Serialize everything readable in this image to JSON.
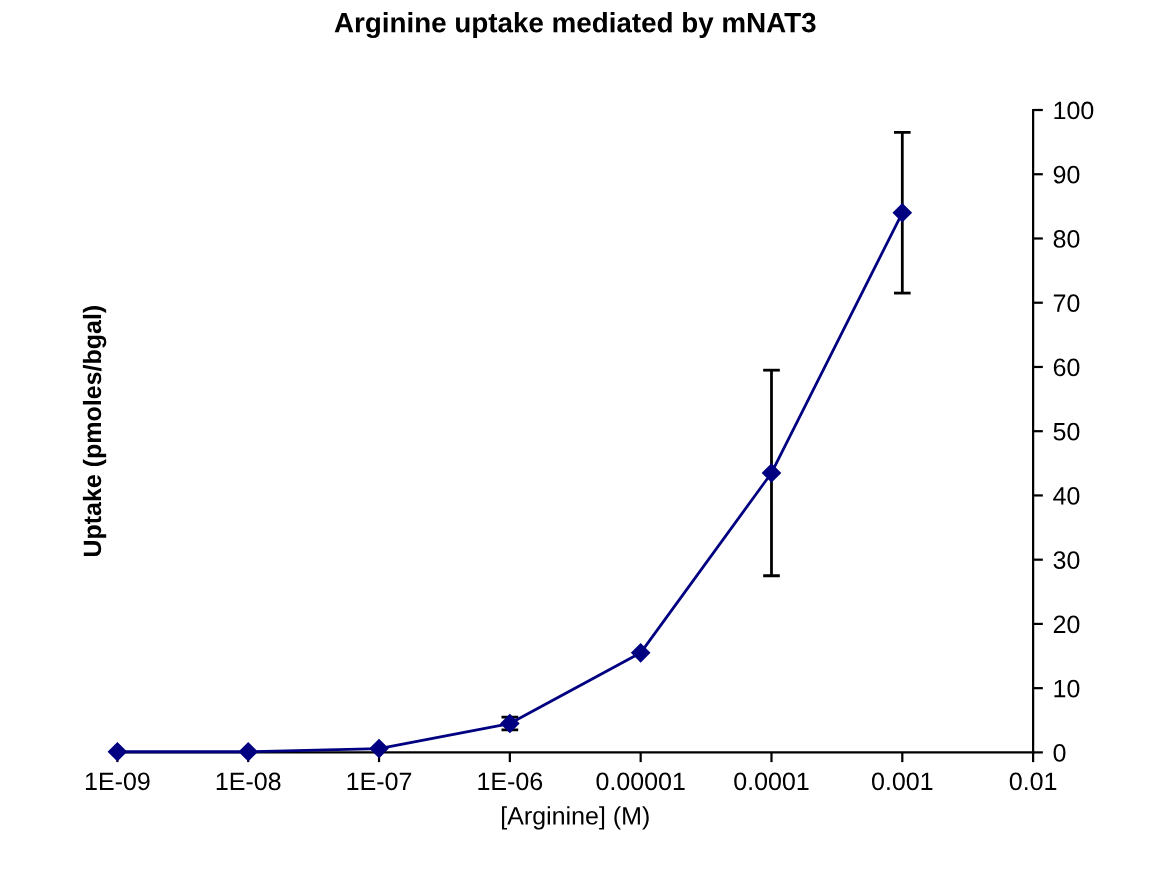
{
  "chart_data": {
    "type": "line",
    "title": "Arginine uptake mediated by mNAT3",
    "xlabel": "[Arginine] (M)",
    "ylabel": "Uptake (pmoles/bgal)",
    "log": "x",
    "x": [
      1e-09,
      1e-08,
      1e-07,
      1e-06,
      1e-05,
      0.0001,
      0.001
    ],
    "series": [
      {
        "color": "#000080",
        "values": [
          0.1,
          0.1,
          0.6,
          4.5,
          15.5,
          43.5,
          84
        ],
        "errors": [
          null,
          null,
          null,
          1,
          null,
          [
            27.5,
            59.5
          ],
          [
            71.5,
            96.5
          ]
        ]
      }
    ],
    "xlim": [
      1e-09,
      0.01
    ],
    "xticks": [
      {
        "value": 1e-09,
        "label": "1E-09"
      },
      {
        "value": 1e-08,
        "label": "1E-08"
      },
      {
        "value": 1e-07,
        "label": "1E-07"
      },
      {
        "value": 1e-06,
        "label": "1E-06"
      },
      {
        "value": 1e-05,
        "label": "0.00001"
      },
      {
        "value": 0.0001,
        "label": "0.0001"
      },
      {
        "value": 0.001,
        "label": "0.001"
      },
      {
        "value": 0.01,
        "label": "0.01"
      }
    ],
    "ylim": [
      0,
      100
    ],
    "yticks": [
      0,
      10,
      20,
      30,
      40,
      50,
      60,
      70,
      80,
      90,
      100
    ],
    "grid": false,
    "legend": false,
    "marker": "diamond",
    "line_style": "solid"
  }
}
